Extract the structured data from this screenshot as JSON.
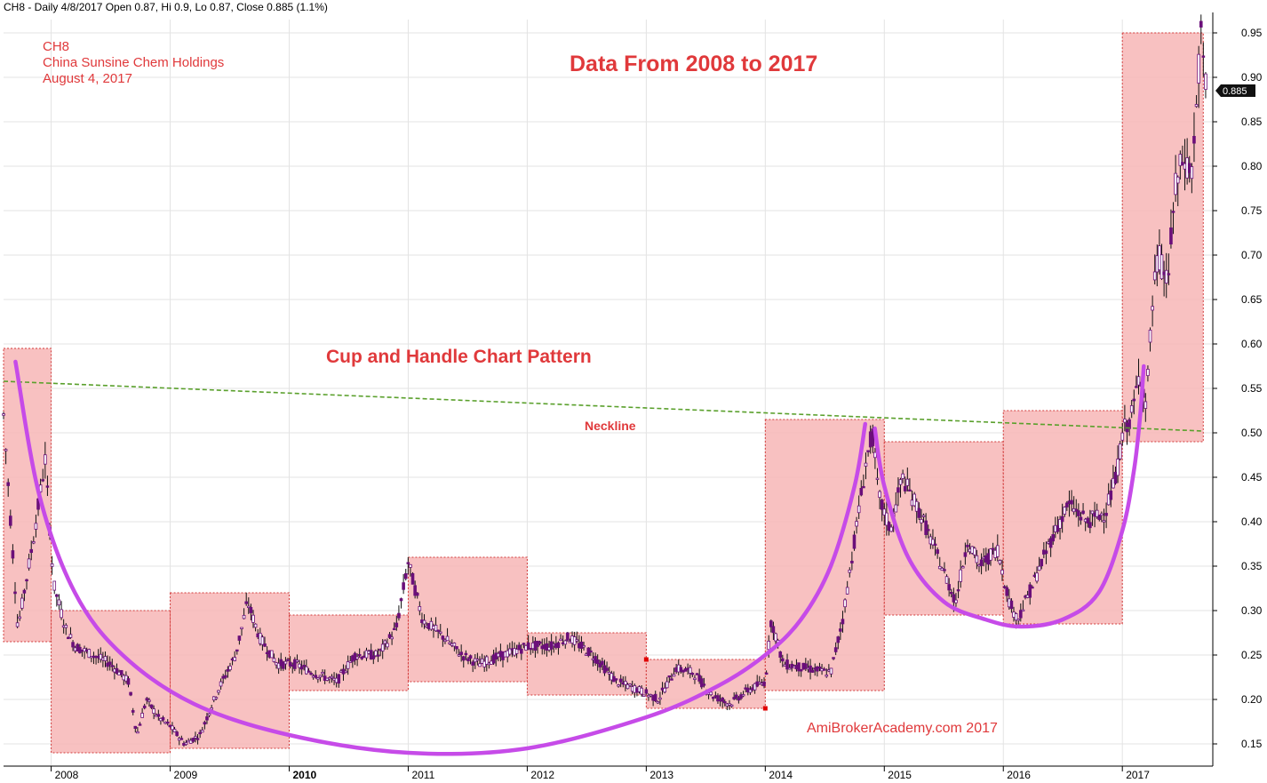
{
  "header": {
    "quote_line": "CH8 - Daily 4/8/2017 Open 0.87, Hi 0.9, Lo 0.87, Close 0.885 (1.1%)"
  },
  "annotations": {
    "ticker": "CH8",
    "company": "China Sunsine Chem Holdings",
    "date": "August 4, 2017",
    "title": "Data From 2008 to 2017",
    "pattern": "Cup and Handle Chart Pattern",
    "neckline": "Neckline",
    "watermark": "AmiBrokerAcademy.com 2017"
  },
  "colors": {
    "candle": "#6b0f7a",
    "box_fill": "#f7b6b6",
    "box_border": "#d23a3a",
    "cup_curve": "#c64be8",
    "neckline": "#5aa02c",
    "annotation_text": "#e0393b",
    "grid": "#e3e3e3"
  },
  "chart_data": {
    "type": "candlestick",
    "title": "",
    "x_range": [
      2007.6,
      2017.76
    ],
    "year_ticks": [
      "2008",
      "2009",
      "2010",
      "2011",
      "2012",
      "2013",
      "2014",
      "2015",
      "2016",
      "2017"
    ],
    "y_axis": {
      "range": [
        0.125,
        0.965
      ],
      "ticks": [
        "0.15",
        "0.20",
        "0.25",
        "0.30",
        "0.35",
        "0.40",
        "0.45",
        "0.50",
        "0.55",
        "0.60",
        "0.65",
        "0.70",
        "0.75",
        "0.80",
        "0.85",
        "0.90",
        "0.95"
      ],
      "last_price_label": "0.885"
    },
    "grid": true,
    "price_path": [
      [
        2007.6,
        0.52
      ],
      [
        2007.72,
        0.28
      ],
      [
        2007.85,
        0.38
      ],
      [
        2007.95,
        0.47
      ],
      [
        2008.02,
        0.33
      ],
      [
        2008.12,
        0.28
      ],
      [
        2008.2,
        0.26
      ],
      [
        2008.35,
        0.25
      ],
      [
        2008.5,
        0.24
      ],
      [
        2008.65,
        0.22
      ],
      [
        2008.72,
        0.16
      ],
      [
        2008.8,
        0.2
      ],
      [
        2008.9,
        0.18
      ],
      [
        2009.0,
        0.17
      ],
      [
        2009.12,
        0.15
      ],
      [
        2009.25,
        0.16
      ],
      [
        2009.4,
        0.21
      ],
      [
        2009.55,
        0.25
      ],
      [
        2009.65,
        0.31
      ],
      [
        2009.75,
        0.27
      ],
      [
        2009.9,
        0.24
      ],
      [
        2010.05,
        0.24
      ],
      [
        2010.2,
        0.23
      ],
      [
        2010.4,
        0.22
      ],
      [
        2010.55,
        0.25
      ],
      [
        2010.75,
        0.25
      ],
      [
        2010.9,
        0.28
      ],
      [
        2011.0,
        0.355
      ],
      [
        2011.12,
        0.29
      ],
      [
        2011.3,
        0.27
      ],
      [
        2011.45,
        0.25
      ],
      [
        2011.6,
        0.24
      ],
      [
        2011.8,
        0.25
      ],
      [
        2012.0,
        0.26
      ],
      [
        2012.2,
        0.26
      ],
      [
        2012.35,
        0.27
      ],
      [
        2012.55,
        0.25
      ],
      [
        2012.75,
        0.22
      ],
      [
        2012.95,
        0.21
      ],
      [
        2013.1,
        0.2
      ],
      [
        2013.25,
        0.235
      ],
      [
        2013.4,
        0.23
      ],
      [
        2013.55,
        0.205
      ],
      [
        2013.7,
        0.195
      ],
      [
        2013.85,
        0.21
      ],
      [
        2014.0,
        0.22
      ],
      [
        2014.05,
        0.29
      ],
      [
        2014.15,
        0.24
      ],
      [
        2014.35,
        0.235
      ],
      [
        2014.55,
        0.23
      ],
      [
        2014.65,
        0.29
      ],
      [
        2014.75,
        0.38
      ],
      [
        2014.85,
        0.47
      ],
      [
        2014.9,
        0.5
      ],
      [
        2014.95,
        0.43
      ],
      [
        2015.05,
        0.39
      ],
      [
        2015.15,
        0.45
      ],
      [
        2015.3,
        0.41
      ],
      [
        2015.45,
        0.36
      ],
      [
        2015.6,
        0.31
      ],
      [
        2015.7,
        0.38
      ],
      [
        2015.8,
        0.35
      ],
      [
        2015.95,
        0.37
      ],
      [
        2016.05,
        0.31
      ],
      [
        2016.12,
        0.29
      ],
      [
        2016.25,
        0.33
      ],
      [
        2016.4,
        0.38
      ],
      [
        2016.55,
        0.42
      ],
      [
        2016.7,
        0.4
      ],
      [
        2016.85,
        0.41
      ],
      [
        2016.95,
        0.45
      ],
      [
        2017.0,
        0.5
      ],
      [
        2017.08,
        0.52
      ],
      [
        2017.15,
        0.57
      ],
      [
        2017.2,
        0.53
      ],
      [
        2017.25,
        0.64
      ],
      [
        2017.3,
        0.7
      ],
      [
        2017.38,
        0.67
      ],
      [
        2017.45,
        0.78
      ],
      [
        2017.52,
        0.81
      ],
      [
        2017.58,
        0.79
      ],
      [
        2017.62,
        0.86
      ],
      [
        2017.66,
        0.95
      ],
      [
        2017.7,
        0.885
      ]
    ],
    "yearly_boxes": [
      {
        "start": 2007.6,
        "end": 2008.0,
        "low": 0.265,
        "high": 0.595
      },
      {
        "start": 2008.0,
        "end": 2009.0,
        "low": 0.14,
        "high": 0.3
      },
      {
        "start": 2009.0,
        "end": 2010.0,
        "low": 0.145,
        "high": 0.32
      },
      {
        "start": 2010.0,
        "end": 2011.0,
        "low": 0.21,
        "high": 0.295
      },
      {
        "start": 2011.0,
        "end": 2012.0,
        "low": 0.22,
        "high": 0.36
      },
      {
        "start": 2012.0,
        "end": 2013.0,
        "low": 0.205,
        "high": 0.275
      },
      {
        "start": 2013.0,
        "end": 2014.0,
        "low": 0.19,
        "high": 0.245
      },
      {
        "start": 2014.0,
        "end": 2015.0,
        "low": 0.21,
        "high": 0.515
      },
      {
        "start": 2015.0,
        "end": 2016.0,
        "low": 0.295,
        "high": 0.49
      },
      {
        "start": 2016.0,
        "end": 2017.0,
        "low": 0.285,
        "high": 0.525
      },
      {
        "start": 2017.0,
        "end": 2017.68,
        "low": 0.49,
        "high": 0.95
      }
    ],
    "neckline": {
      "x": [
        2007.6,
        2017.68
      ],
      "y": [
        0.558,
        0.502
      ]
    },
    "cup_curve": [
      [
        2007.7,
        0.58
      ],
      [
        2007.9,
        0.43
      ],
      [
        2008.2,
        0.32
      ],
      [
        2008.6,
        0.25
      ],
      [
        2009.2,
        0.195
      ],
      [
        2010.0,
        0.16
      ],
      [
        2011.0,
        0.14
      ],
      [
        2012.0,
        0.145
      ],
      [
        2013.0,
        0.18
      ],
      [
        2013.6,
        0.215
      ],
      [
        2014.0,
        0.25
      ],
      [
        2014.3,
        0.29
      ],
      [
        2014.55,
        0.35
      ],
      [
        2014.75,
        0.44
      ],
      [
        2014.84,
        0.51
      ]
    ],
    "handle_curve": [
      [
        2014.92,
        0.505
      ],
      [
        2015.0,
        0.44
      ],
      [
        2015.2,
        0.36
      ],
      [
        2015.5,
        0.31
      ],
      [
        2015.85,
        0.29
      ],
      [
        2016.15,
        0.282
      ],
      [
        2016.5,
        0.29
      ],
      [
        2016.8,
        0.32
      ],
      [
        2017.0,
        0.39
      ],
      [
        2017.1,
        0.46
      ],
      [
        2017.15,
        0.52
      ],
      [
        2017.18,
        0.575
      ]
    ],
    "marker_points": [
      [
        2013.0,
        0.245
      ],
      [
        2014.0,
        0.19
      ]
    ]
  }
}
